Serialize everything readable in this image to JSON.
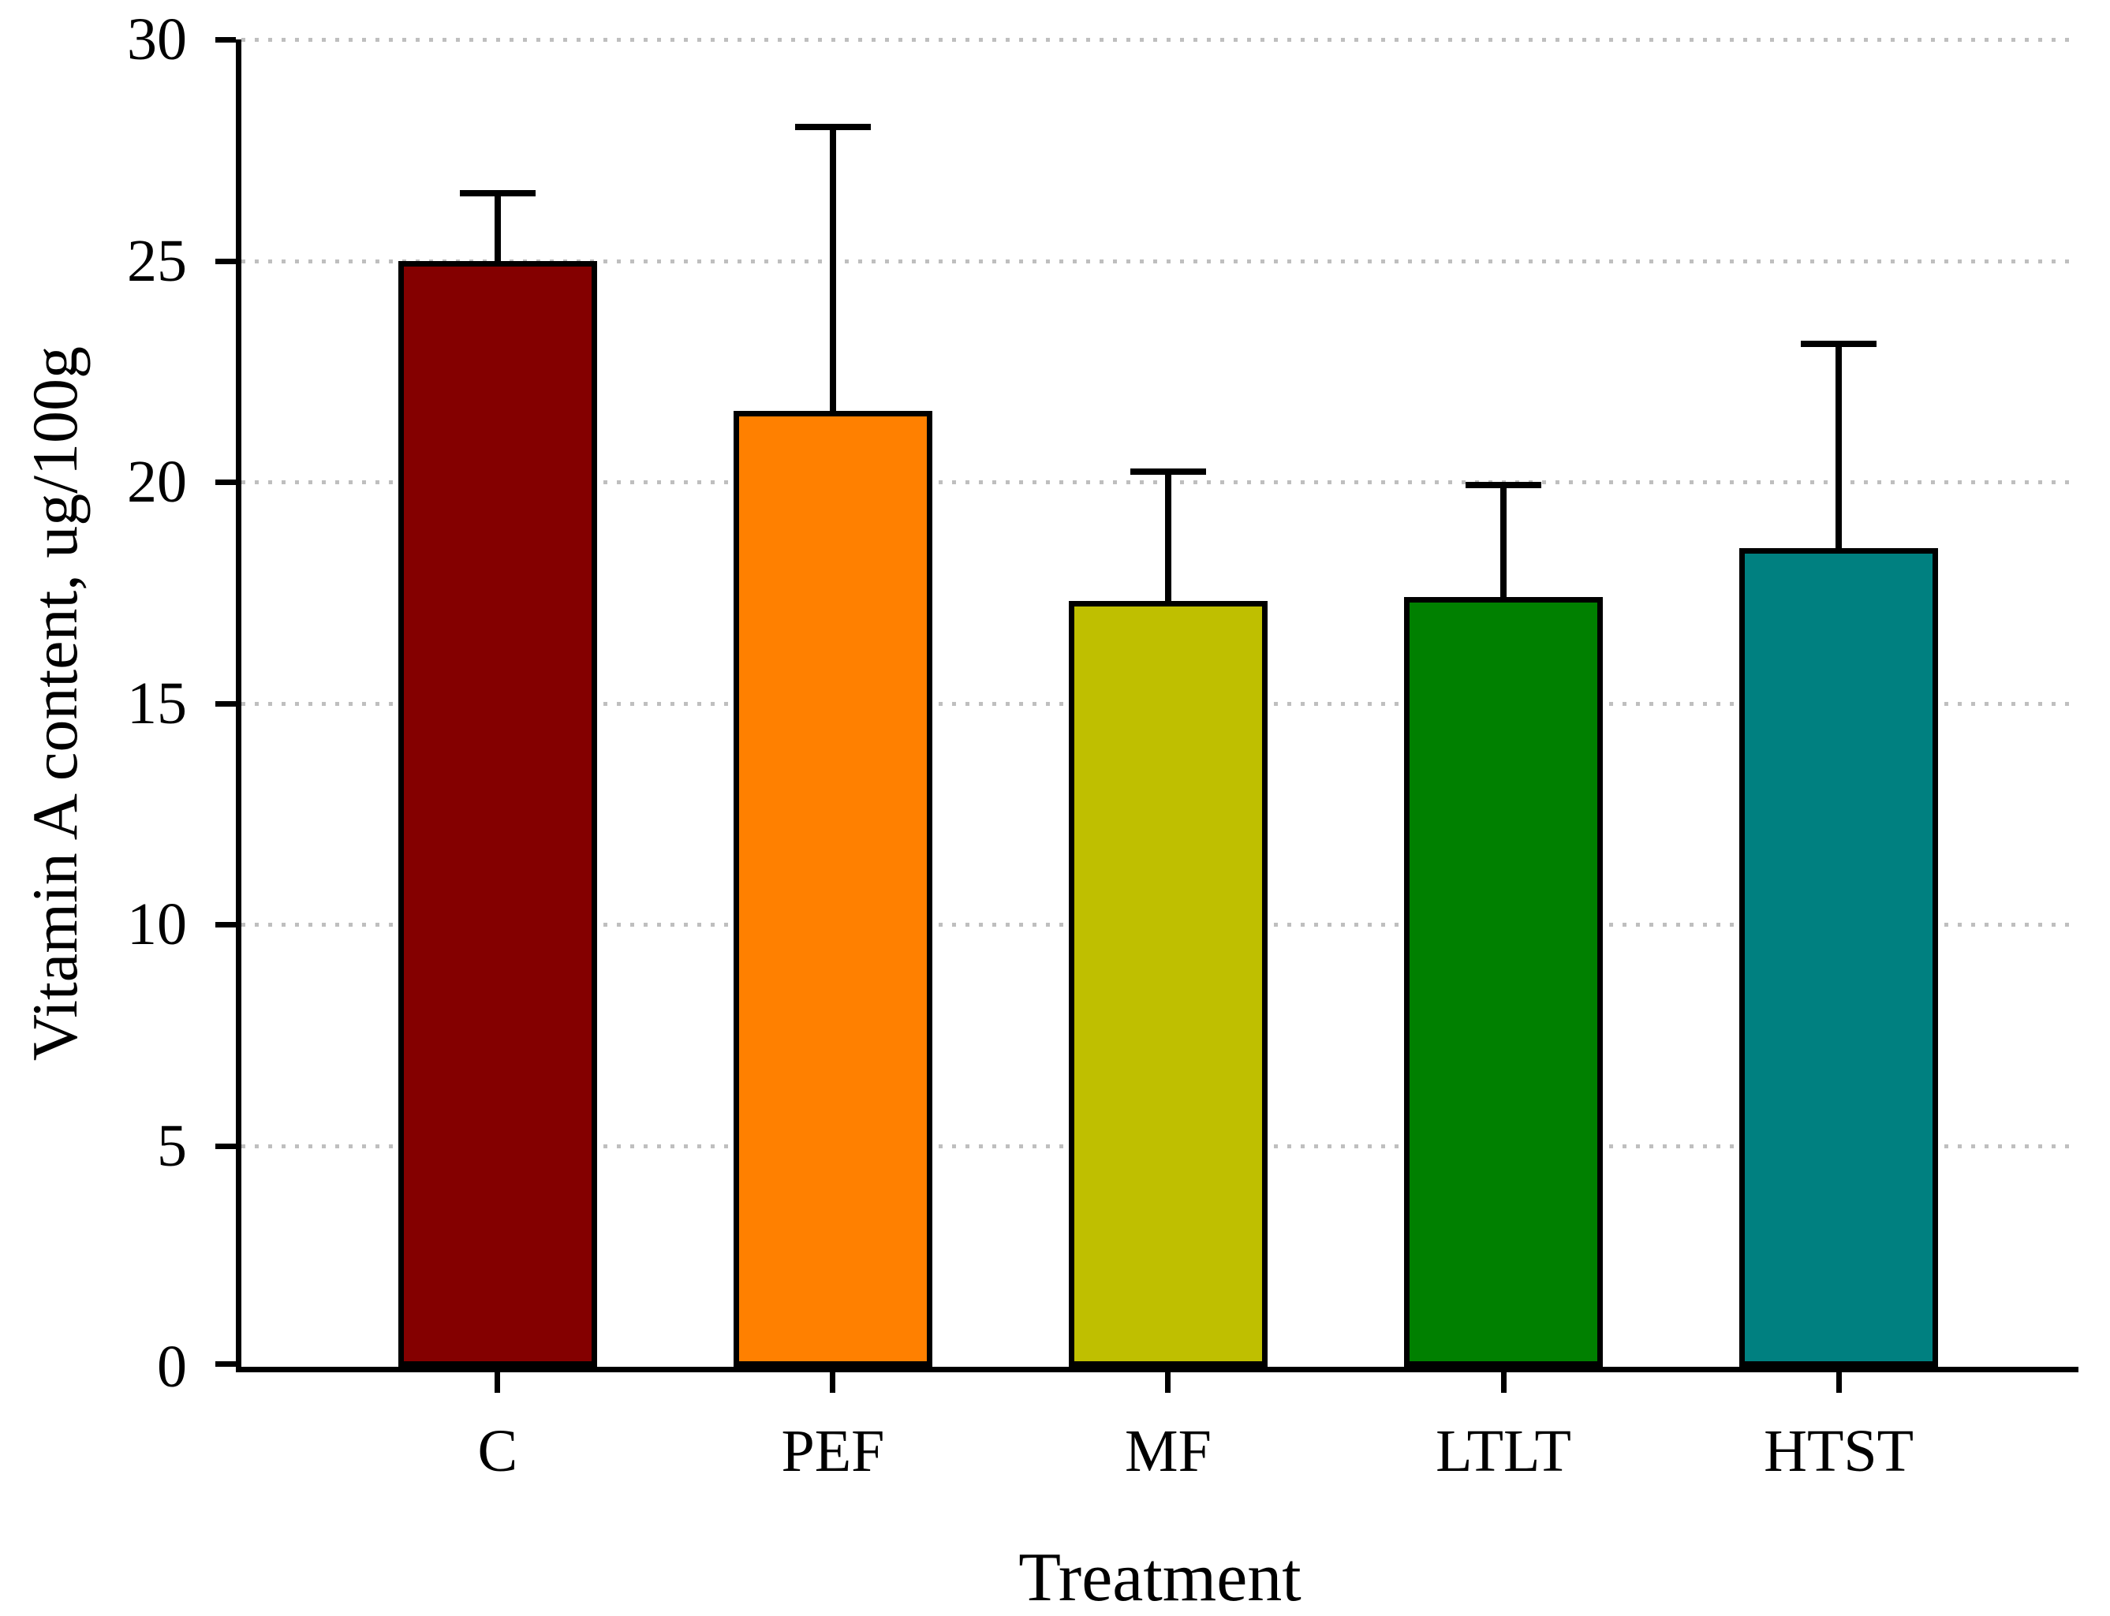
{
  "chart_data": {
    "type": "bar",
    "title": "",
    "categories": [
      "C",
      "PEF",
      "MF",
      "LTLT",
      "HTST"
    ],
    "values": [
      25.0,
      21.6,
      17.3,
      17.4,
      18.5
    ],
    "error_upper": [
      1.6,
      6.5,
      3.0,
      2.6,
      4.7
    ],
    "error_cap_values": [
      26.6,
      28.1,
      20.3,
      20.0,
      23.2
    ],
    "bar_colors": [
      "#840000",
      "#FF8000",
      "#BFBF00",
      "#008000",
      "#008080"
    ],
    "xlabel": "Treatment",
    "ylabel": "Vitamin A content, ug/100g",
    "ylim": [
      0,
      30
    ],
    "yticks": [
      0,
      5,
      10,
      15,
      20,
      25,
      30
    ],
    "grid": {
      "axis": "y",
      "style": "dotted",
      "color": "#BFBFBF",
      "at": [
        5,
        10,
        15,
        20,
        25,
        30
      ]
    },
    "legend": "none",
    "colors": {
      "background": "#FFFFFF",
      "axis": "#000000",
      "bar_border": "#000000",
      "text": "#000000"
    }
  }
}
